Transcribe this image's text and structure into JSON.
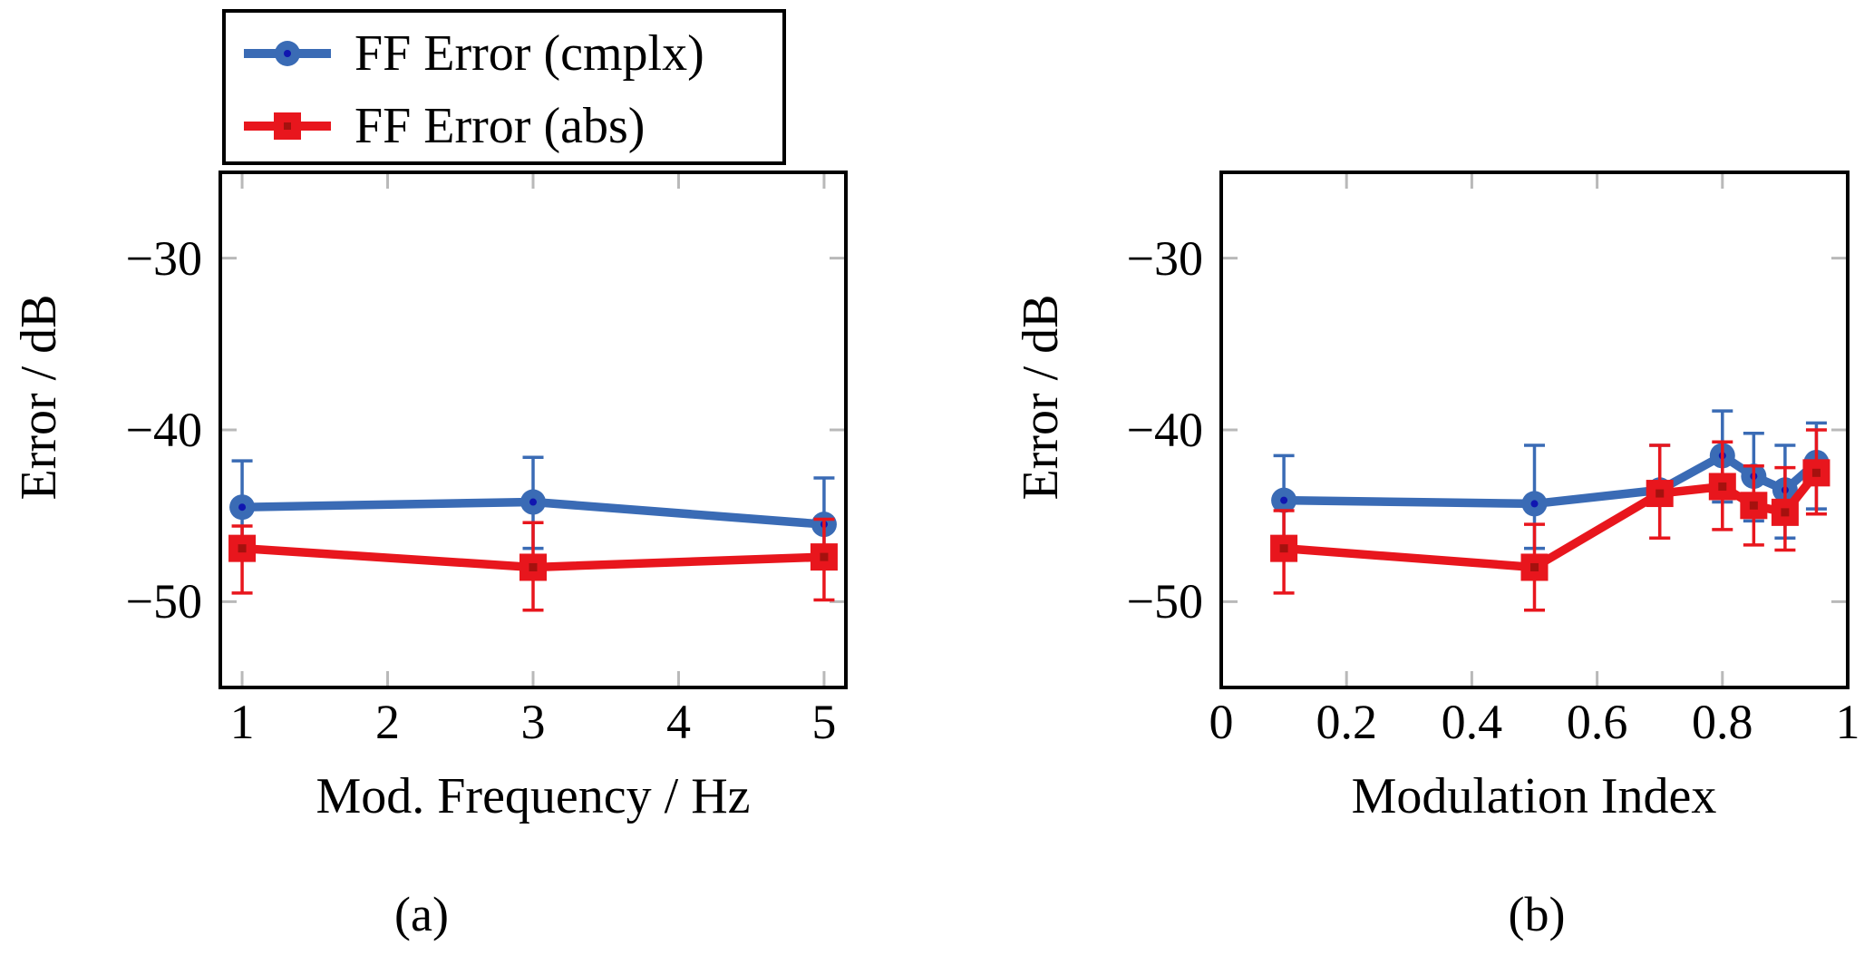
{
  "colors": {
    "cmplx": "#3a6bb5",
    "cmplx_dot": "#1016b0",
    "abs": "#e8161d",
    "abs_dot": "#a5110e",
    "tick": "#b9b9b9",
    "frame": "#000000",
    "background": "#ffffff"
  },
  "legend": {
    "entries": [
      {
        "label": "FF Error (cmplx)",
        "series": "cmplx",
        "marker": "circle"
      },
      {
        "label": "FF Error (abs)",
        "series": "abs",
        "marker": "square"
      }
    ]
  },
  "chart_data": [
    {
      "id": "a",
      "type": "line",
      "caption": "(a)",
      "xlabel": "Mod. Frequency / Hz",
      "ylabel": "Error / dB",
      "xlim": [
        0.85,
        5.15
      ],
      "ylim": [
        -55,
        -25
      ],
      "grid": false,
      "xticks": [
        1,
        2,
        3,
        4,
        5
      ],
      "xtick_labels": [
        "1",
        "2",
        "3",
        "4",
        "5"
      ],
      "yticks": [
        -30,
        -40,
        -50
      ],
      "ytick_labels": [
        "−30",
        "−40",
        "−50"
      ],
      "series": [
        {
          "name": "FF Error (cmplx)",
          "color_key": "cmplx",
          "marker": "circle",
          "x": [
            1,
            3,
            5
          ],
          "y": [
            -44.5,
            -44.2,
            -45.5
          ],
          "err_hi": [
            -41.8,
            -41.6,
            -42.8
          ],
          "err_lo": [
            -46.8,
            -46.9,
            -47.5
          ]
        },
        {
          "name": "FF Error (abs)",
          "color_key": "abs",
          "marker": "square",
          "x": [
            1,
            3,
            5
          ],
          "y": [
            -46.9,
            -48.0,
            -47.4
          ],
          "err_hi": [
            -45.6,
            -45.4,
            -45.2
          ],
          "err_lo": [
            -49.5,
            -50.5,
            -49.9
          ]
        }
      ]
    },
    {
      "id": "b",
      "type": "line",
      "caption": "(b)",
      "xlabel": "Modulation Index",
      "ylabel": "Error / dB",
      "xlim": [
        0,
        1
      ],
      "ylim": [
        -55,
        -25
      ],
      "grid": false,
      "xticks": [
        0,
        0.2,
        0.4,
        0.6,
        0.8,
        1
      ],
      "xtick_labels": [
        "0",
        "0.2",
        "0.4",
        "0.6",
        "0.8",
        "1"
      ],
      "yticks": [
        -30,
        -40,
        -50
      ],
      "ytick_labels": [
        "−30",
        "−40",
        "−50"
      ],
      "series": [
        {
          "name": "FF Error (cmplx)",
          "color_key": "cmplx",
          "marker": "circle",
          "x": [
            0.1,
            0.5,
            0.7,
            0.8,
            0.85,
            0.9,
            0.95
          ],
          "y": [
            -44.1,
            -44.3,
            -43.5,
            -41.5,
            -42.7,
            -43.5,
            -41.9
          ],
          "err_hi": [
            -41.5,
            -40.9,
            -40.9,
            -38.9,
            -40.2,
            -40.9,
            -39.6
          ],
          "err_lo": [
            -46.3,
            -46.9,
            -46.3,
            -44.2,
            -45.3,
            -46.3,
            -44.6
          ]
        },
        {
          "name": "FF Error (abs)",
          "color_key": "abs",
          "marker": "square",
          "x": [
            0.1,
            0.5,
            0.7,
            0.8,
            0.85,
            0.9,
            0.95
          ],
          "y": [
            -46.9,
            -48.0,
            -43.7,
            -43.3,
            -44.4,
            -44.8,
            -42.5
          ],
          "err_hi": [
            -44.7,
            -45.5,
            -40.9,
            -40.7,
            -42.1,
            -42.2,
            -40.0
          ],
          "err_lo": [
            -49.5,
            -50.5,
            -46.3,
            -45.8,
            -46.7,
            -47.0,
            -44.9
          ]
        }
      ]
    }
  ]
}
